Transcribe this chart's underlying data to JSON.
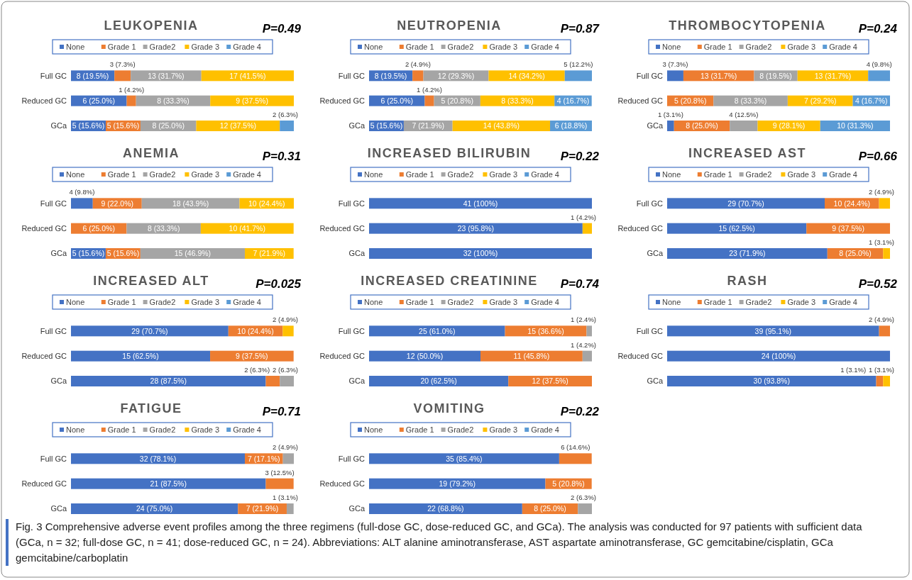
{
  "chart_data": [
    {
      "type": "bar",
      "orientation": "horizontal",
      "stacked": true,
      "legend": "top",
      "title": "LEUKOPENIA",
      "annotations": [
        "P=0.49"
      ],
      "categories": [
        "Full GC",
        "Reduced GC",
        "GCa"
      ],
      "series": [
        {
          "name": "None",
          "color": "#4472c4",
          "values": [
            19.5,
            25.0,
            15.6
          ],
          "value_labels": [
            "8 (19.5%)",
            "6 (25.0%)",
            "5 (15.6%)"
          ]
        },
        {
          "name": "Grade 1",
          "color": "#ed7d31",
          "values": [
            7.3,
            4.2,
            15.6
          ],
          "value_labels": [
            "3 (7.3%)",
            "1 (4.2%)",
            "5 (15.6%)"
          ]
        },
        {
          "name": "Grade2",
          "color": "#a5a5a5",
          "values": [
            31.7,
            33.3,
            25.0
          ],
          "value_labels": [
            "13 (31.7%)",
            "8 (33.3%)",
            "8 (25.0%)"
          ]
        },
        {
          "name": "Grade 3",
          "color": "#ffc000",
          "values": [
            41.5,
            37.5,
            37.5
          ],
          "value_labels": [
            "17 (41.5%)",
            "9 (37.5%)",
            "12 (37.5%)"
          ]
        },
        {
          "name": "Grade 4",
          "color": "#5b9bd5",
          "values": [
            null,
            null,
            6.3
          ],
          "value_labels": [
            null,
            null,
            "2 (6.3%)"
          ]
        }
      ]
    },
    {
      "type": "bar",
      "orientation": "horizontal",
      "stacked": true,
      "legend": "top",
      "title": "NEUTROPENIA",
      "annotations": [
        "P=0.87"
      ],
      "categories": [
        "Full GC",
        "Reduced GC",
        "GCa"
      ],
      "series": [
        {
          "name": "None",
          "color": "#4472c4",
          "values": [
            19.5,
            25.0,
            15.6
          ],
          "value_labels": [
            "8 (19.5%)",
            "6 (25.0%)",
            "5 (15.6%)"
          ]
        },
        {
          "name": "Grade 1",
          "color": "#ed7d31",
          "values": [
            4.9,
            4.2,
            null
          ],
          "value_labels": [
            "2 (4.9%)",
            "1 (4.2%)",
            null
          ]
        },
        {
          "name": "Grade2",
          "color": "#a5a5a5",
          "values": [
            29.3,
            20.8,
            21.9
          ],
          "value_labels": [
            "12 (29.3%)",
            "5 (20.8%)",
            "7 (21.9%)"
          ]
        },
        {
          "name": "Grade 3",
          "color": "#ffc000",
          "values": [
            34.2,
            33.3,
            43.8
          ],
          "value_labels": [
            "14 (34.2%)",
            "8 (33.3%)",
            "14 (43.8%)"
          ]
        },
        {
          "name": "Grade 4",
          "color": "#5b9bd5",
          "values": [
            12.2,
            16.7,
            18.8
          ],
          "value_labels": [
            "5 (12.2%)",
            "4 (16.7%)",
            "6 (18.8%)"
          ]
        }
      ]
    },
    {
      "type": "bar",
      "orientation": "horizontal",
      "stacked": true,
      "legend": "top",
      "title": "THROMBOCYTOPENIA",
      "annotations": [
        "P=0.24"
      ],
      "categories": [
        "Full GC",
        "Reduced GC",
        "GCa"
      ],
      "series": [
        {
          "name": "None",
          "color": "#4472c4",
          "values": [
            7.3,
            null,
            3.1
          ],
          "value_labels": [
            "3 (7.3%)",
            null,
            "1 (3.1%)"
          ]
        },
        {
          "name": "Grade 1",
          "color": "#ed7d31",
          "values": [
            31.7,
            20.8,
            25.0
          ],
          "value_labels": [
            "13 (31.7%)",
            "5 (20.8%)",
            "8 (25.0%)"
          ]
        },
        {
          "name": "Grade2",
          "color": "#a5a5a5",
          "values": [
            19.5,
            33.3,
            12.5
          ],
          "value_labels": [
            "8 (19.5%)",
            "8 (33.3%)",
            "4 (12.5%)"
          ]
        },
        {
          "name": "Grade 3",
          "color": "#ffc000",
          "values": [
            31.7,
            29.2,
            28.1
          ],
          "value_labels": [
            "13 (31.7%)",
            "7 (29.2%)",
            "9 (28.1%)"
          ]
        },
        {
          "name": "Grade 4",
          "color": "#5b9bd5",
          "values": [
            9.8,
            16.7,
            31.3
          ],
          "value_labels": [
            "4 (9.8%)",
            "4 (16.7%)",
            "10 (31.3%)"
          ]
        }
      ]
    },
    {
      "type": "bar",
      "orientation": "horizontal",
      "stacked": true,
      "legend": "top",
      "title": "ANEMIA",
      "annotations": [
        "P=0.31"
      ],
      "categories": [
        "Full GC",
        "Reduced GC",
        "GCa"
      ],
      "series": [
        {
          "name": "None",
          "color": "#4472c4",
          "values": [
            9.8,
            null,
            15.6
          ],
          "value_labels": [
            "4 (9.8%)",
            null,
            "5 (15.6%)"
          ]
        },
        {
          "name": "Grade 1",
          "color": "#ed7d31",
          "values": [
            22.0,
            25.0,
            15.6
          ],
          "value_labels": [
            "9 (22.0%)",
            "6 (25.0%)",
            "5 (15.6%)"
          ]
        },
        {
          "name": "Grade2",
          "color": "#a5a5a5",
          "values": [
            43.9,
            33.3,
            46.9
          ],
          "value_labels": [
            "18 (43.9%)",
            "8 (33.3%)",
            "15 (46.9%)"
          ]
        },
        {
          "name": "Grade 3",
          "color": "#ffc000",
          "values": [
            24.4,
            41.7,
            21.9
          ],
          "value_labels": [
            "10 (24.4%)",
            "10 (41.7%)",
            "7 (21.9%)"
          ]
        },
        {
          "name": "Grade 4",
          "color": "#5b9bd5",
          "values": [
            null,
            null,
            null
          ]
        }
      ]
    },
    {
      "type": "bar",
      "orientation": "horizontal",
      "stacked": true,
      "legend": "top",
      "title": "INCREASED BILIRUBIN",
      "annotations": [
        "P=0.22"
      ],
      "categories": [
        "Full GC",
        "Reduced GC",
        "GCa"
      ],
      "series": [
        {
          "name": "None",
          "color": "#4472c4",
          "values": [
            100,
            95.8,
            100
          ],
          "value_labels": [
            "41 (100%)",
            "23 (95.8%)",
            "32 (100%)"
          ]
        },
        {
          "name": "Grade 1",
          "color": "#ed7d31",
          "values": [
            null,
            null,
            null
          ]
        },
        {
          "name": "Grade2",
          "color": "#a5a5a5",
          "values": [
            null,
            null,
            null
          ]
        },
        {
          "name": "Grade 3",
          "color": "#ffc000",
          "values": [
            null,
            4.2,
            null
          ],
          "value_labels": [
            null,
            "1 (4.2%)",
            null
          ]
        },
        {
          "name": "Grade 4",
          "color": "#5b9bd5",
          "values": [
            null,
            null,
            null
          ]
        }
      ]
    },
    {
      "type": "bar",
      "orientation": "horizontal",
      "stacked": true,
      "legend": "top",
      "title": "INCREASED AST",
      "annotations": [
        "P=0.66"
      ],
      "categories": [
        "Full GC",
        "Reduced GC",
        "GCa"
      ],
      "series": [
        {
          "name": "None",
          "color": "#4472c4",
          "values": [
            70.7,
            62.5,
            71.9
          ],
          "value_labels": [
            "29 (70.7%)",
            "15 (62.5%)",
            "23 (71.9%)"
          ]
        },
        {
          "name": "Grade 1",
          "color": "#ed7d31",
          "values": [
            24.4,
            37.5,
            25.0
          ],
          "value_labels": [
            "10 (24.4%)",
            "9 (37.5%)",
            "8 (25.0%)"
          ]
        },
        {
          "name": "Grade2",
          "color": "#a5a5a5",
          "values": [
            null,
            null,
            null
          ]
        },
        {
          "name": "Grade 3",
          "color": "#ffc000",
          "values": [
            4.9,
            null,
            3.1
          ],
          "value_labels": [
            "2 (4.9%)",
            null,
            "1 (3.1%)"
          ]
        },
        {
          "name": "Grade 4",
          "color": "#5b9bd5",
          "values": [
            null,
            null,
            null
          ]
        }
      ]
    },
    {
      "type": "bar",
      "orientation": "horizontal",
      "stacked": true,
      "legend": "top",
      "title": "INCREASED ALT",
      "annotations": [
        "P=0.025"
      ],
      "categories": [
        "Full GC",
        "Reduced GC",
        "GCa"
      ],
      "series": [
        {
          "name": "None",
          "color": "#4472c4",
          "values": [
            70.7,
            62.5,
            87.5
          ],
          "value_labels": [
            "29 (70.7%)",
            "15 (62.5%)",
            "28 (87.5%)"
          ]
        },
        {
          "name": "Grade 1",
          "color": "#ed7d31",
          "values": [
            24.4,
            37.5,
            6.3
          ],
          "value_labels": [
            "10 (24.4%)",
            "9 (37.5%)",
            "2 (6.3%)"
          ]
        },
        {
          "name": "Grade2",
          "color": "#a5a5a5",
          "values": [
            null,
            null,
            6.3
          ],
          "value_labels": [
            null,
            null,
            "2 (6.3%)"
          ]
        },
        {
          "name": "Grade 3",
          "color": "#ffc000",
          "values": [
            4.9,
            null,
            null
          ],
          "value_labels": [
            "2 (4.9%)",
            null,
            null
          ]
        },
        {
          "name": "Grade 4",
          "color": "#5b9bd5",
          "values": [
            null,
            null,
            null
          ]
        }
      ]
    },
    {
      "type": "bar",
      "orientation": "horizontal",
      "stacked": true,
      "legend": "top",
      "title": "INCREASED CREATININE",
      "annotations": [
        "P=0.74"
      ],
      "categories": [
        "Full GC",
        "Reduced GC",
        "GCa"
      ],
      "series": [
        {
          "name": "None",
          "color": "#4472c4",
          "values": [
            61.0,
            50.0,
            62.5
          ],
          "value_labels": [
            "25 (61.0%)",
            "12 (50.0%)",
            "20 (62.5%)"
          ]
        },
        {
          "name": "Grade 1",
          "color": "#ed7d31",
          "values": [
            36.6,
            45.8,
            37.5
          ],
          "value_labels": [
            "15 (36.6%)",
            "11 (45.8%)",
            "12 (37.5%)"
          ]
        },
        {
          "name": "Grade2",
          "color": "#a5a5a5",
          "values": [
            2.4,
            4.2,
            null
          ],
          "value_labels": [
            "1 (2.4%)",
            "1 (4.2%)",
            null
          ]
        },
        {
          "name": "Grade 3",
          "color": "#ffc000",
          "values": [
            null,
            null,
            null
          ]
        },
        {
          "name": "Grade 4",
          "color": "#5b9bd5",
          "values": [
            null,
            null,
            null
          ]
        }
      ]
    },
    {
      "type": "bar",
      "orientation": "horizontal",
      "stacked": true,
      "legend": "top",
      "title": "RASH",
      "annotations": [
        "P=0.52"
      ],
      "categories": [
        "Full GC",
        "Reduced GC",
        "GCa"
      ],
      "series": [
        {
          "name": "None",
          "color": "#4472c4",
          "values": [
            95.1,
            100,
            93.8
          ],
          "value_labels": [
            "39 (95.1%)",
            "24 (100%)",
            "30 (93.8%)"
          ]
        },
        {
          "name": "Grade 1",
          "color": "#ed7d31",
          "values": [
            4.9,
            null,
            3.1
          ],
          "value_labels": [
            "2 (4.9%)",
            null,
            "1 (3.1%)"
          ]
        },
        {
          "name": "Grade2",
          "color": "#a5a5a5",
          "values": [
            null,
            null,
            null
          ]
        },
        {
          "name": "Grade 3",
          "color": "#ffc000",
          "values": [
            null,
            null,
            3.1
          ],
          "value_labels": [
            null,
            null,
            "1 (3.1%)"
          ]
        },
        {
          "name": "Grade 4",
          "color": "#5b9bd5",
          "values": [
            null,
            null,
            null
          ]
        }
      ]
    },
    {
      "type": "bar",
      "orientation": "horizontal",
      "stacked": true,
      "legend": "top",
      "title": "FATIGUE",
      "annotations": [
        "P=0.71"
      ],
      "categories": [
        "Full GC",
        "Reduced GC",
        "GCa"
      ],
      "series": [
        {
          "name": "None",
          "color": "#4472c4",
          "values": [
            78.1,
            87.5,
            75.0
          ],
          "value_labels": [
            "32 (78.1%)",
            "21 (87.5%)",
            "24 (75.0%)"
          ]
        },
        {
          "name": "Grade 1",
          "color": "#ed7d31",
          "values": [
            17.1,
            12.5,
            21.9
          ],
          "value_labels": [
            "7 (17.1%)",
            "3 (12.5%)",
            "7 (21.9%)"
          ]
        },
        {
          "name": "Grade2",
          "color": "#a5a5a5",
          "values": [
            4.9,
            null,
            3.1
          ],
          "value_labels": [
            "2 (4.9%)",
            null,
            "1 (3.1%)"
          ]
        },
        {
          "name": "Grade 3",
          "color": "#ffc000",
          "values": [
            null,
            null,
            null
          ]
        },
        {
          "name": "Grade 4",
          "color": "#5b9bd5",
          "values": [
            null,
            null,
            null
          ]
        }
      ]
    },
    {
      "type": "bar",
      "orientation": "horizontal",
      "stacked": true,
      "legend": "top",
      "title": "VOMITING",
      "annotations": [
        "P=0.22",
        "Fig. 3 Comprehensive adverse event profiles among the three regimens (full-dose GC, dose-reduced GC, and GCa). The analysis was conducted for 97 patients with sufficient data (GCa, n = 32; full-dose GC, n = 41; dose-reduced GC, n = 24). Abbreviations: ALT alanine aminotransferase, AST aspartate aminotransferase, GC gemcitabine/cisplatin, GCa gemcitabine/carboplatin"
      ],
      "categories": [
        "Full GC",
        "Reduced GC",
        "GCa"
      ],
      "series": [
        {
          "name": "None",
          "color": "#4472c4",
          "values": [
            85.4,
            79.2,
            68.8
          ],
          "value_labels": [
            "35 (85.4%)",
            "19 (79.2%)",
            "22 (68.8%)"
          ]
        },
        {
          "name": "Grade 1",
          "color": "#ed7d31",
          "values": [
            14.6,
            20.8,
            25.0
          ],
          "value_labels": [
            "6 (14.6%)",
            "5 (20.8%)",
            "8 (25.0%)"
          ]
        },
        {
          "name": "Grade2",
          "color": "#a5a5a5",
          "values": [
            null,
            null,
            6.3
          ],
          "value_labels": [
            null,
            null,
            "2 (6.3%)"
          ]
        },
        {
          "name": "Grade 3",
          "color": "#ffc000",
          "values": [
            null,
            null,
            null
          ]
        },
        {
          "name": "Grade 4",
          "color": "#5b9bd5",
          "values": [
            null,
            null,
            null
          ]
        }
      ]
    }
  ]
}
